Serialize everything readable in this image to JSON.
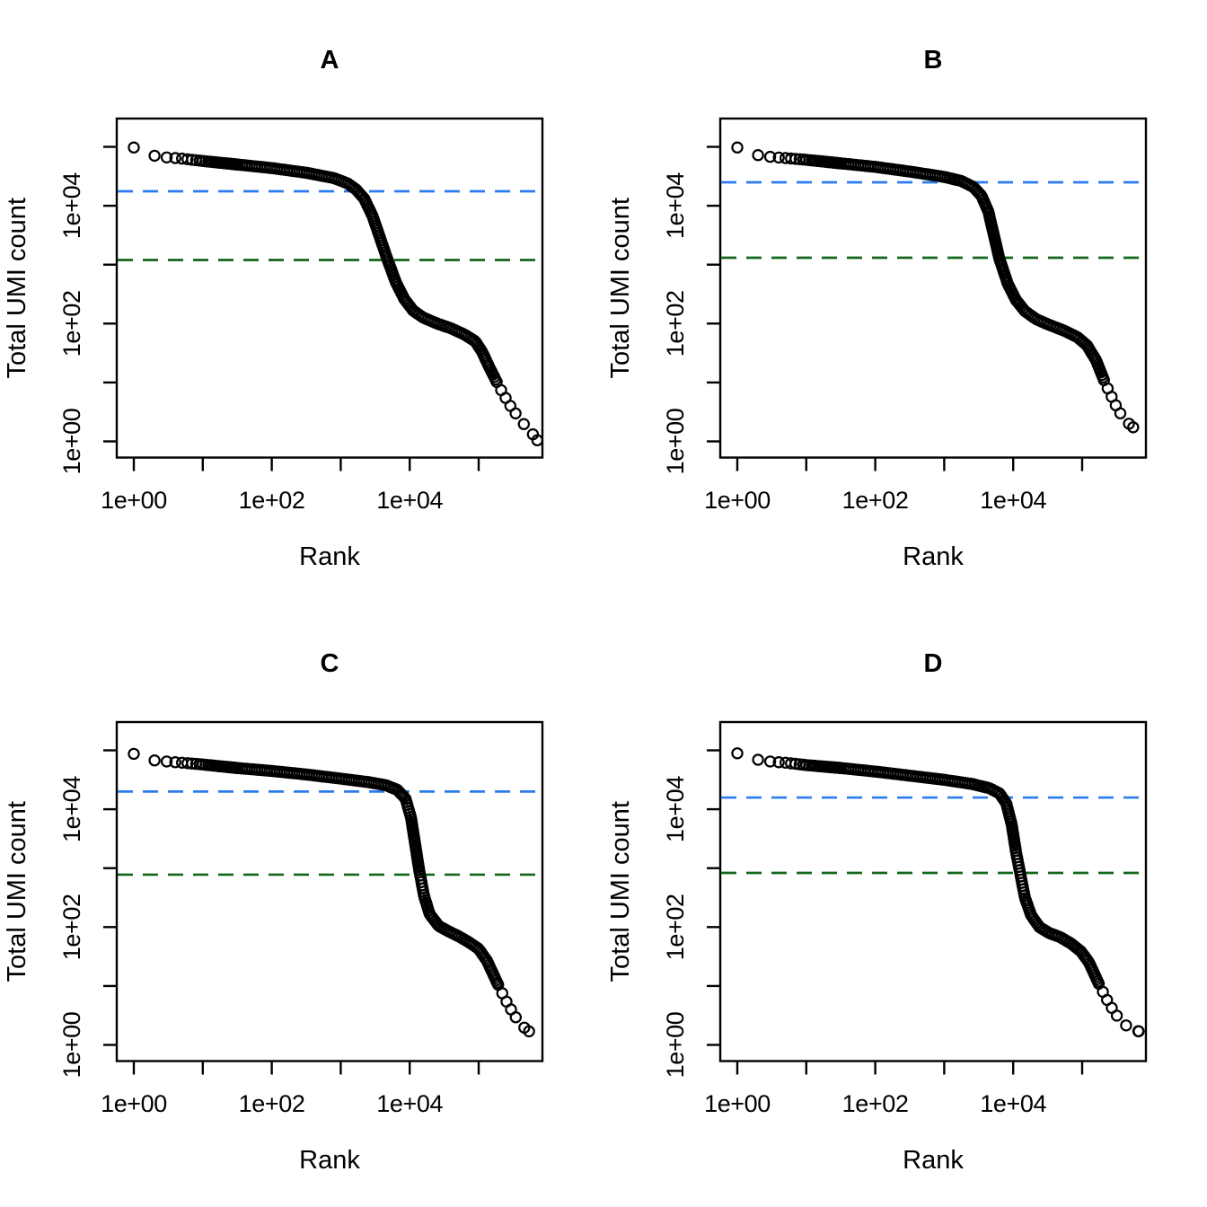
{
  "figure": {
    "description": "Barcode rank knee plots, 2x2 grid of panels",
    "marker": "open-circle",
    "point_color": "#000000",
    "knee_line_color": "#2B7BF0",
    "inflection_line_color": "#14661A"
  },
  "chart_data": [
    {
      "type": "scatter",
      "title": "A",
      "xlabel": "Rank",
      "ylabel": "Total UMI count",
      "x_scale": "log10",
      "y_scale": "log10",
      "xlim_log10": [
        -0.25,
        5.92
      ],
      "ylim_log10": [
        -0.27,
        5.47
      ],
      "grid": "off",
      "legend": "none",
      "x_ticks": {
        "labels": [
          "1e+00",
          "1e+02",
          "1e+04"
        ],
        "label_decades": [
          0,
          2,
          4
        ],
        "minor_decades": [
          1,
          3,
          5
        ]
      },
      "y_ticks": {
        "labels": [
          "1e+00",
          "1e+02",
          "1e+04"
        ],
        "label_decades": [
          0,
          2,
          4
        ],
        "minor_decades": [
          1,
          3,
          5
        ]
      },
      "hlines": [
        {
          "name": "knee-threshold",
          "value": 17600,
          "style": "dashed",
          "color": "#2B7BF0"
        },
        {
          "name": "inflection-threshold",
          "value": 1200,
          "style": "dashed",
          "color": "#14661A"
        }
      ],
      "series": [
        {
          "name": "total-UMI-count-vs-barcode-rank",
          "marker": "open-circle",
          "color": "#000000",
          "points_log10": [
            [
              0,
              4.99
            ],
            [
              0.3,
              4.85
            ],
            [
              0.48,
              4.82
            ],
            [
              0.7,
              4.8
            ],
            [
              1,
              4.76
            ],
            [
              1.5,
              4.7
            ],
            [
              2,
              4.64
            ],
            [
              2.5,
              4.56
            ],
            [
              2.9,
              4.47
            ],
            [
              3.1,
              4.38
            ],
            [
              3.22,
              4.28
            ],
            [
              3.34,
              4.12
            ],
            [
              3.46,
              3.83
            ],
            [
              3.58,
              3.42
            ],
            [
              3.68,
              3.08
            ],
            [
              3.8,
              2.7
            ],
            [
              3.92,
              2.42
            ],
            [
              4.05,
              2.22
            ],
            [
              4.2,
              2.1
            ],
            [
              4.4,
              2.0
            ],
            [
              4.6,
              1.92
            ],
            [
              4.8,
              1.81
            ],
            [
              4.95,
              1.7
            ],
            [
              5.05,
              1.52
            ],
            [
              5.15,
              1.27
            ],
            [
              5.3,
              0.92
            ],
            [
              5.45,
              0.62
            ],
            [
              5.55,
              0.45
            ],
            [
              5.65,
              0.3
            ],
            [
              5.75,
              0.18
            ],
            [
              5.85,
              0.02
            ]
          ]
        }
      ]
    },
    {
      "type": "scatter",
      "title": "B",
      "xlabel": "Rank",
      "ylabel": "Total UMI count",
      "x_scale": "log10",
      "y_scale": "log10",
      "xlim_log10": [
        -0.25,
        5.92
      ],
      "ylim_log10": [
        -0.27,
        5.47
      ],
      "grid": "off",
      "legend": "none",
      "x_ticks": {
        "labels": [
          "1e+00",
          "1e+02",
          "1e+04"
        ],
        "label_decades": [
          0,
          2,
          4
        ],
        "minor_decades": [
          1,
          3,
          5
        ]
      },
      "y_ticks": {
        "labels": [
          "1e+00",
          "1e+02",
          "1e+04"
        ],
        "label_decades": [
          0,
          2,
          4
        ],
        "minor_decades": [
          1,
          3,
          5
        ]
      },
      "hlines": [
        {
          "name": "knee-threshold",
          "value": 25000,
          "style": "dashed",
          "color": "#2B7BF0"
        },
        {
          "name": "inflection-threshold",
          "value": 1310,
          "style": "dashed",
          "color": "#14661A"
        }
      ],
      "series": [
        {
          "name": "total-UMI-count-vs-barcode-rank",
          "marker": "open-circle",
          "color": "#000000",
          "points_log10": [
            [
              0,
              4.99
            ],
            [
              0.3,
              4.86
            ],
            [
              0.48,
              4.83
            ],
            [
              0.7,
              4.81
            ],
            [
              1,
              4.78
            ],
            [
              1.5,
              4.72
            ],
            [
              2,
              4.66
            ],
            [
              2.5,
              4.58
            ],
            [
              3,
              4.49
            ],
            [
              3.25,
              4.42
            ],
            [
              3.42,
              4.32
            ],
            [
              3.54,
              4.17
            ],
            [
              3.64,
              3.9
            ],
            [
              3.72,
              3.5
            ],
            [
              3.8,
              3.1
            ],
            [
              3.92,
              2.68
            ],
            [
              4.04,
              2.4
            ],
            [
              4.17,
              2.21
            ],
            [
              4.34,
              2.07
            ],
            [
              4.54,
              1.97
            ],
            [
              4.74,
              1.88
            ],
            [
              4.93,
              1.77
            ],
            [
              5.07,
              1.63
            ],
            [
              5.2,
              1.38
            ],
            [
              5.33,
              1.0
            ],
            [
              5.47,
              0.65
            ],
            [
              5.58,
              0.42
            ],
            [
              5.65,
              0.33
            ],
            [
              5.74,
              0.24
            ]
          ]
        }
      ]
    },
    {
      "type": "scatter",
      "title": "C",
      "xlabel": "Rank",
      "ylabel": "Total UMI count",
      "x_scale": "log10",
      "y_scale": "log10",
      "xlim_log10": [
        -0.25,
        5.92
      ],
      "ylim_log10": [
        -0.27,
        5.47
      ],
      "grid": "off",
      "legend": "none",
      "x_ticks": {
        "labels": [
          "1e+00",
          "1e+02",
          "1e+04"
        ],
        "label_decades": [
          0,
          2,
          4
        ],
        "minor_decades": [
          1,
          3,
          5
        ]
      },
      "y_ticks": {
        "labels": [
          "1e+00",
          "1e+02",
          "1e+04"
        ],
        "label_decades": [
          0,
          2,
          4
        ],
        "minor_decades": [
          1,
          3,
          5
        ]
      },
      "hlines": [
        {
          "name": "knee-threshold",
          "value": 20000,
          "style": "dashed",
          "color": "#2B7BF0"
        },
        {
          "name": "inflection-threshold",
          "value": 775,
          "style": "dashed",
          "color": "#14661A"
        }
      ],
      "series": [
        {
          "name": "total-UMI-count-vs-barcode-rank",
          "marker": "open-circle",
          "color": "#000000",
          "points_log10": [
            [
              0,
              4.94
            ],
            [
              0.3,
              4.83
            ],
            [
              0.48,
              4.81
            ],
            [
              0.7,
              4.79
            ],
            [
              1,
              4.76
            ],
            [
              1.5,
              4.7
            ],
            [
              2,
              4.65
            ],
            [
              2.5,
              4.59
            ],
            [
              3,
              4.52
            ],
            [
              3.4,
              4.46
            ],
            [
              3.65,
              4.41
            ],
            [
              3.82,
              4.33
            ],
            [
              3.94,
              4.18
            ],
            [
              4.02,
              3.85
            ],
            [
              4.08,
              3.4
            ],
            [
              4.14,
              2.95
            ],
            [
              4.21,
              2.52
            ],
            [
              4.29,
              2.22
            ],
            [
              4.42,
              2.02
            ],
            [
              4.56,
              1.93
            ],
            [
              4.7,
              1.85
            ],
            [
              4.85,
              1.75
            ],
            [
              5.0,
              1.63
            ],
            [
              5.12,
              1.43
            ],
            [
              5.25,
              1.1
            ],
            [
              5.4,
              0.74
            ],
            [
              5.52,
              0.5
            ],
            [
              5.62,
              0.33
            ],
            [
              5.73,
              0.23
            ]
          ]
        }
      ]
    },
    {
      "type": "scatter",
      "title": "D",
      "xlabel": "Rank",
      "ylabel": "Total UMI count",
      "x_scale": "log10",
      "y_scale": "log10",
      "xlim_log10": [
        -0.25,
        5.92
      ],
      "ylim_log10": [
        -0.27,
        5.47
      ],
      "grid": "off",
      "legend": "none",
      "x_ticks": {
        "labels": [
          "1e+00",
          "1e+02",
          "1e+04"
        ],
        "label_decades": [
          0,
          2,
          4
        ],
        "minor_decades": [
          1,
          3,
          5
        ]
      },
      "y_ticks": {
        "labels": [
          "1e+00",
          "1e+02",
          "1e+04"
        ],
        "label_decades": [
          0,
          2,
          4
        ],
        "minor_decades": [
          1,
          3,
          5
        ]
      },
      "hlines": [
        {
          "name": "knee-threshold",
          "value": 15800,
          "style": "dashed",
          "color": "#2B7BF0"
        },
        {
          "name": "inflection-threshold",
          "value": 830,
          "style": "dashed",
          "color": "#14661A"
        }
      ],
      "series": [
        {
          "name": "total-UMI-count-vs-barcode-rank",
          "marker": "open-circle",
          "color": "#000000",
          "points_log10": [
            [
              0,
              4.95
            ],
            [
              0.3,
              4.84
            ],
            [
              0.48,
              4.81
            ],
            [
              0.7,
              4.79
            ],
            [
              1,
              4.75
            ],
            [
              1.5,
              4.7
            ],
            [
              2,
              4.64
            ],
            [
              2.5,
              4.57
            ],
            [
              3,
              4.5
            ],
            [
              3.4,
              4.43
            ],
            [
              3.65,
              4.36
            ],
            [
              3.8,
              4.27
            ],
            [
              3.9,
              4.1
            ],
            [
              3.98,
              3.73
            ],
            [
              4.04,
              3.28
            ],
            [
              4.1,
              2.92
            ],
            [
              4.17,
              2.5
            ],
            [
              4.26,
              2.2
            ],
            [
              4.38,
              2.0
            ],
            [
              4.52,
              1.9
            ],
            [
              4.68,
              1.83
            ],
            [
              4.84,
              1.72
            ],
            [
              4.98,
              1.59
            ],
            [
              5.1,
              1.4
            ],
            [
              5.24,
              1.04
            ],
            [
              5.38,
              0.72
            ],
            [
              5.5,
              0.5
            ],
            [
              5.6,
              0.36
            ],
            [
              5.7,
              0.28
            ],
            [
              5.82,
              0.23
            ]
          ]
        }
      ]
    }
  ]
}
